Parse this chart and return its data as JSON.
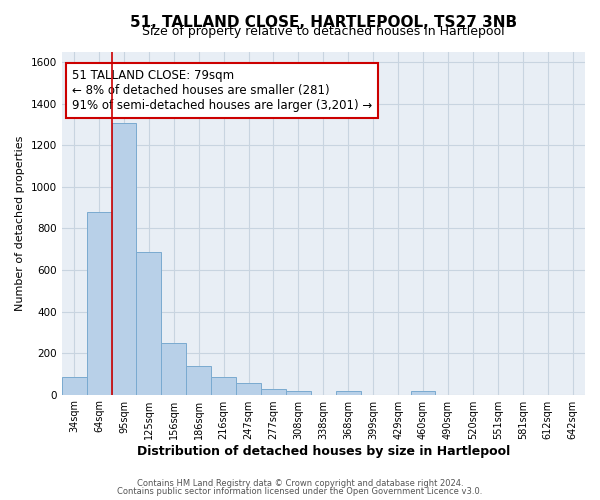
{
  "title": "51, TALLAND CLOSE, HARTLEPOOL, TS27 3NB",
  "subtitle": "Size of property relative to detached houses in Hartlepool",
  "xlabel": "Distribution of detached houses by size in Hartlepool",
  "ylabel": "Number of detached properties",
  "bin_labels": [
    "34sqm",
    "64sqm",
    "95sqm",
    "125sqm",
    "156sqm",
    "186sqm",
    "216sqm",
    "247sqm",
    "277sqm",
    "308sqm",
    "338sqm",
    "368sqm",
    "399sqm",
    "429sqm",
    "460sqm",
    "490sqm",
    "520sqm",
    "551sqm",
    "581sqm",
    "612sqm",
    "642sqm"
  ],
  "bar_values": [
    85,
    880,
    1310,
    685,
    250,
    140,
    85,
    55,
    25,
    18,
    0,
    18,
    0,
    0,
    18,
    0,
    0,
    0,
    0,
    0,
    0
  ],
  "bar_color": "#b8d0e8",
  "bar_edge_color": "#7aaad0",
  "vline_color": "#cc0000",
  "annotation_text": "51 TALLAND CLOSE: 79sqm\n← 8% of detached houses are smaller (281)\n91% of semi-detached houses are larger (3,201) →",
  "annotation_box_color": "#ffffff",
  "annotation_box_edge_color": "#cc0000",
  "ylim": [
    0,
    1650
  ],
  "yticks": [
    0,
    200,
    400,
    600,
    800,
    1000,
    1200,
    1400,
    1600
  ],
  "background_color": "#ffffff",
  "plot_bg_color": "#e8eef5",
  "grid_color": "#c8d4e0",
  "footer_line1": "Contains HM Land Registry data © Crown copyright and database right 2024.",
  "footer_line2": "Contains public sector information licensed under the Open Government Licence v3.0.",
  "title_fontsize": 11,
  "subtitle_fontsize": 9,
  "annotation_fontsize": 8.5,
  "xlabel_fontsize": 9,
  "ylabel_fontsize": 8
}
